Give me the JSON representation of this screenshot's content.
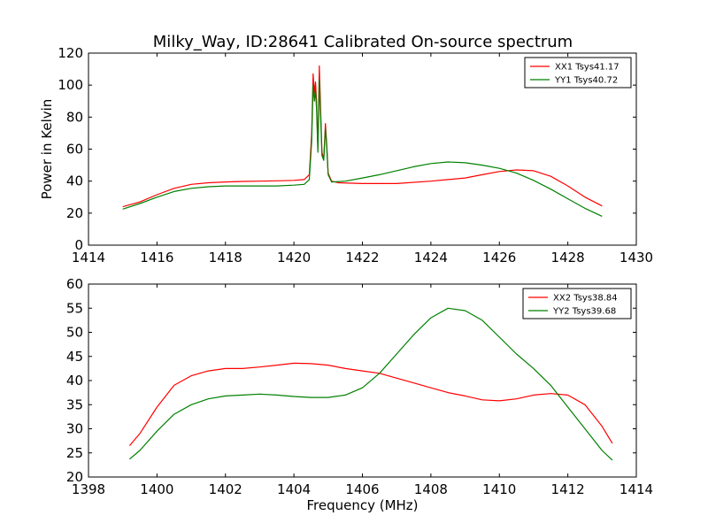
{
  "title": "Milky_Way, ID:28641 Calibrated On-source spectrum",
  "colors": {
    "red": "#ff0000",
    "green": "#008000"
  },
  "chart_data": [
    {
      "type": "line",
      "ylabel": "Power in Kelvin",
      "xlabel": "",
      "xlim": [
        1414,
        1430
      ],
      "ylim": [
        0,
        120
      ],
      "xticks": [
        1414,
        1416,
        1418,
        1420,
        1422,
        1424,
        1426,
        1428,
        1430
      ],
      "yticks": [
        0,
        20,
        40,
        60,
        80,
        100,
        120
      ],
      "legend_position": "top-right",
      "series": [
        {
          "name": "XX1 Tsys41.17",
          "color": "#ff0000",
          "points": [
            [
              1415.0,
              24
            ],
            [
              1415.5,
              27
            ],
            [
              1416.0,
              31.5
            ],
            [
              1416.5,
              35.5
            ],
            [
              1417.0,
              38
            ],
            [
              1417.5,
              39
            ],
            [
              1418.0,
              39.5
            ],
            [
              1418.5,
              39.8
            ],
            [
              1419.0,
              40
            ],
            [
              1419.5,
              40.2
            ],
            [
              1420.0,
              40.5
            ],
            [
              1420.3,
              41
            ],
            [
              1420.45,
              44
            ],
            [
              1420.52,
              70
            ],
            [
              1420.56,
              107
            ],
            [
              1420.6,
              95
            ],
            [
              1420.63,
              102
            ],
            [
              1420.66,
              90
            ],
            [
              1420.7,
              60
            ],
            [
              1420.74,
              112
            ],
            [
              1420.78,
              85
            ],
            [
              1420.82,
              58
            ],
            [
              1420.87,
              54
            ],
            [
              1420.92,
              76
            ],
            [
              1420.96,
              62
            ],
            [
              1421.0,
              45
            ],
            [
              1421.1,
              40
            ],
            [
              1421.3,
              39
            ],
            [
              1422.0,
              38.5
            ],
            [
              1423.0,
              38.5
            ],
            [
              1424.0,
              40
            ],
            [
              1424.5,
              41
            ],
            [
              1425.0,
              42
            ],
            [
              1425.5,
              44
            ],
            [
              1426.0,
              46
            ],
            [
              1426.5,
              47
            ],
            [
              1427.0,
              46.5
            ],
            [
              1427.5,
              43
            ],
            [
              1428.0,
              37
            ],
            [
              1428.5,
              30
            ],
            [
              1429.0,
              24.5
            ]
          ]
        },
        {
          "name": "YY1 Tsys40.72",
          "color": "#008000",
          "points": [
            [
              1415.0,
              22.5
            ],
            [
              1415.5,
              26
            ],
            [
              1416.0,
              30
            ],
            [
              1416.5,
              33.5
            ],
            [
              1417.0,
              35.5
            ],
            [
              1417.5,
              36.5
            ],
            [
              1418.0,
              37
            ],
            [
              1418.5,
              37
            ],
            [
              1419.0,
              37
            ],
            [
              1419.5,
              37
            ],
            [
              1420.0,
              37.5
            ],
            [
              1420.3,
              38
            ],
            [
              1420.45,
              41
            ],
            [
              1420.52,
              65
            ],
            [
              1420.56,
              100
            ],
            [
              1420.6,
              90
            ],
            [
              1420.63,
              97
            ],
            [
              1420.66,
              85
            ],
            [
              1420.7,
              58
            ],
            [
              1420.74,
              103
            ],
            [
              1420.78,
              80
            ],
            [
              1420.82,
              56
            ],
            [
              1420.87,
              53
            ],
            [
              1420.92,
              73
            ],
            [
              1420.96,
              60
            ],
            [
              1421.0,
              44
            ],
            [
              1421.1,
              39.5
            ],
            [
              1421.5,
              40
            ],
            [
              1422.0,
              42
            ],
            [
              1422.5,
              44
            ],
            [
              1423.0,
              46.5
            ],
            [
              1423.5,
              49
            ],
            [
              1424.0,
              51
            ],
            [
              1424.5,
              52
            ],
            [
              1425.0,
              51.5
            ],
            [
              1425.5,
              50
            ],
            [
              1426.0,
              48
            ],
            [
              1426.5,
              45
            ],
            [
              1427.0,
              40.5
            ],
            [
              1427.5,
              35
            ],
            [
              1428.0,
              29
            ],
            [
              1428.5,
              23
            ],
            [
              1429.0,
              18
            ]
          ]
        }
      ]
    },
    {
      "type": "line",
      "ylabel": "",
      "xlabel": "Frequency (MHz)",
      "xlim": [
        1398,
        1414
      ],
      "ylim": [
        20,
        60
      ],
      "xticks": [
        1398,
        1400,
        1402,
        1404,
        1406,
        1408,
        1410,
        1412,
        1414
      ],
      "yticks": [
        20,
        25,
        30,
        35,
        40,
        45,
        50,
        55,
        60
      ],
      "legend_position": "top-right",
      "series": [
        {
          "name": "XX2 Tsys38.84",
          "color": "#ff0000",
          "points": [
            [
              1399.2,
              26.5
            ],
            [
              1399.5,
              29
            ],
            [
              1400.0,
              34.5
            ],
            [
              1400.5,
              39
            ],
            [
              1401.0,
              41
            ],
            [
              1401.5,
              42
            ],
            [
              1402.0,
              42.5
            ],
            [
              1402.5,
              42.5
            ],
            [
              1403.0,
              42.8
            ],
            [
              1403.5,
              43.2
            ],
            [
              1404.0,
              43.6
            ],
            [
              1404.5,
              43.5
            ],
            [
              1405.0,
              43.2
            ],
            [
              1405.5,
              42.5
            ],
            [
              1406.0,
              42
            ],
            [
              1406.5,
              41.5
            ],
            [
              1407.0,
              40.5
            ],
            [
              1407.5,
              39.5
            ],
            [
              1408.0,
              38.5
            ],
            [
              1408.5,
              37.5
            ],
            [
              1409.0,
              36.8
            ],
            [
              1409.5,
              36
            ],
            [
              1410.0,
              35.8
            ],
            [
              1410.5,
              36.2
            ],
            [
              1411.0,
              37
            ],
            [
              1411.5,
              37.3
            ],
            [
              1412.0,
              37
            ],
            [
              1412.5,
              35
            ],
            [
              1413.0,
              30.5
            ],
            [
              1413.3,
              27
            ]
          ]
        },
        {
          "name": "YY2 Tsys39.68",
          "color": "#008000",
          "points": [
            [
              1399.2,
              23.7
            ],
            [
              1399.5,
              25.5
            ],
            [
              1400.0,
              29.5
            ],
            [
              1400.5,
              33
            ],
            [
              1401.0,
              35
            ],
            [
              1401.5,
              36.2
            ],
            [
              1402.0,
              36.8
            ],
            [
              1402.5,
              37
            ],
            [
              1403.0,
              37.2
            ],
            [
              1403.5,
              37
            ],
            [
              1404.0,
              36.7
            ],
            [
              1404.5,
              36.5
            ],
            [
              1405.0,
              36.5
            ],
            [
              1405.5,
              37
            ],
            [
              1406.0,
              38.5
            ],
            [
              1406.5,
              41.5
            ],
            [
              1407.0,
              45.5
            ],
            [
              1407.5,
              49.5
            ],
            [
              1408.0,
              53
            ],
            [
              1408.5,
              55
            ],
            [
              1409.0,
              54.5
            ],
            [
              1409.5,
              52.5
            ],
            [
              1410.0,
              49
            ],
            [
              1410.5,
              45.5
            ],
            [
              1411.0,
              42.5
            ],
            [
              1411.5,
              39
            ],
            [
              1412.0,
              34.5
            ],
            [
              1412.5,
              30
            ],
            [
              1413.0,
              25.5
            ],
            [
              1413.3,
              23.5
            ]
          ]
        }
      ]
    }
  ]
}
